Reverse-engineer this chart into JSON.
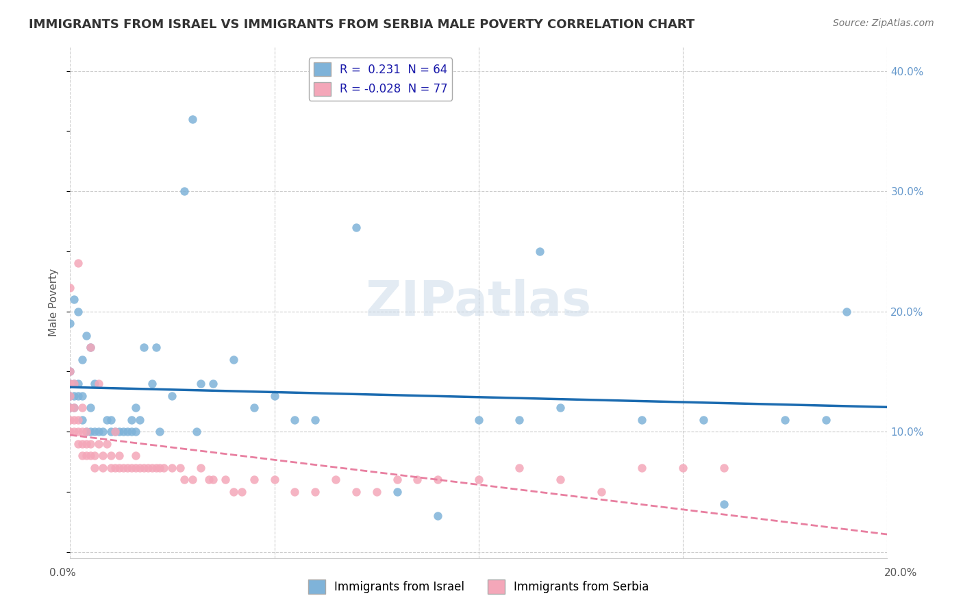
{
  "title": "IMMIGRANTS FROM ISRAEL VS IMMIGRANTS FROM SERBIA MALE POVERTY CORRELATION CHART",
  "source": "Source: ZipAtlas.com",
  "ylabel": "Male Poverty",
  "xlim": [
    0.0,
    0.2
  ],
  "ylim": [
    -0.005,
    0.42
  ],
  "israel_color": "#7FB3D9",
  "serbia_color": "#F4A7B9",
  "israel_line_color": "#1B6BB0",
  "serbia_line_color": "#E87FA0",
  "israel_R": 0.231,
  "israel_N": 64,
  "serbia_R": -0.028,
  "serbia_N": 77,
  "watermark": "ZIPatlas",
  "background_color": "#ffffff",
  "grid_color": "#cccccc",
  "israel_points_x": [
    0.0,
    0.0,
    0.0,
    0.0,
    0.0,
    0.001,
    0.001,
    0.001,
    0.001,
    0.002,
    0.002,
    0.002,
    0.003,
    0.003,
    0.003,
    0.004,
    0.004,
    0.005,
    0.005,
    0.005,
    0.006,
    0.006,
    0.007,
    0.008,
    0.009,
    0.01,
    0.01,
    0.011,
    0.012,
    0.013,
    0.014,
    0.015,
    0.015,
    0.016,
    0.016,
    0.017,
    0.018,
    0.02,
    0.021,
    0.022,
    0.025,
    0.028,
    0.03,
    0.031,
    0.032,
    0.035,
    0.04,
    0.045,
    0.05,
    0.055,
    0.06,
    0.07,
    0.08,
    0.09,
    0.1,
    0.11,
    0.115,
    0.12,
    0.14,
    0.155,
    0.16,
    0.175,
    0.185,
    0.19
  ],
  "israel_points_y": [
    0.12,
    0.13,
    0.14,
    0.15,
    0.19,
    0.12,
    0.13,
    0.14,
    0.21,
    0.13,
    0.14,
    0.2,
    0.11,
    0.13,
    0.16,
    0.1,
    0.18,
    0.1,
    0.12,
    0.17,
    0.1,
    0.14,
    0.1,
    0.1,
    0.11,
    0.1,
    0.11,
    0.1,
    0.1,
    0.1,
    0.1,
    0.1,
    0.11,
    0.1,
    0.12,
    0.11,
    0.17,
    0.14,
    0.17,
    0.1,
    0.13,
    0.3,
    0.36,
    0.1,
    0.14,
    0.14,
    0.16,
    0.12,
    0.13,
    0.11,
    0.11,
    0.27,
    0.05,
    0.03,
    0.11,
    0.11,
    0.25,
    0.12,
    0.11,
    0.11,
    0.04,
    0.11,
    0.11,
    0.2
  ],
  "serbia_points_x": [
    0.0,
    0.0,
    0.0,
    0.0,
    0.0,
    0.0,
    0.0,
    0.001,
    0.001,
    0.001,
    0.001,
    0.002,
    0.002,
    0.002,
    0.002,
    0.003,
    0.003,
    0.003,
    0.003,
    0.004,
    0.004,
    0.004,
    0.005,
    0.005,
    0.005,
    0.006,
    0.006,
    0.007,
    0.007,
    0.008,
    0.008,
    0.009,
    0.01,
    0.01,
    0.011,
    0.011,
    0.012,
    0.012,
    0.013,
    0.014,
    0.015,
    0.016,
    0.016,
    0.017,
    0.018,
    0.019,
    0.02,
    0.021,
    0.022,
    0.023,
    0.025,
    0.027,
    0.028,
    0.03,
    0.032,
    0.034,
    0.035,
    0.038,
    0.04,
    0.042,
    0.045,
    0.05,
    0.055,
    0.06,
    0.065,
    0.07,
    0.075,
    0.08,
    0.085,
    0.09,
    0.1,
    0.11,
    0.12,
    0.13,
    0.14,
    0.15,
    0.16
  ],
  "serbia_points_y": [
    0.1,
    0.11,
    0.12,
    0.13,
    0.14,
    0.15,
    0.22,
    0.1,
    0.11,
    0.12,
    0.14,
    0.09,
    0.1,
    0.11,
    0.24,
    0.08,
    0.09,
    0.1,
    0.12,
    0.08,
    0.09,
    0.1,
    0.08,
    0.09,
    0.17,
    0.07,
    0.08,
    0.09,
    0.14,
    0.07,
    0.08,
    0.09,
    0.07,
    0.08,
    0.07,
    0.1,
    0.07,
    0.08,
    0.07,
    0.07,
    0.07,
    0.07,
    0.08,
    0.07,
    0.07,
    0.07,
    0.07,
    0.07,
    0.07,
    0.07,
    0.07,
    0.07,
    0.06,
    0.06,
    0.07,
    0.06,
    0.06,
    0.06,
    0.05,
    0.05,
    0.06,
    0.06,
    0.05,
    0.05,
    0.06,
    0.05,
    0.05,
    0.06,
    0.06,
    0.06,
    0.06,
    0.07,
    0.06,
    0.05,
    0.07,
    0.07,
    0.07
  ]
}
